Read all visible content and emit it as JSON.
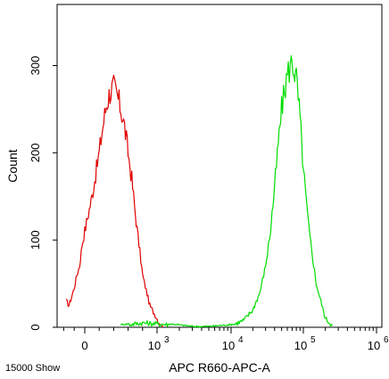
{
  "chart_data": {
    "type": "line",
    "xlabel": "APC R660-APC-A",
    "ylabel": "Count",
    "x_scale": "biexponential",
    "ylim": [
      0,
      370
    ],
    "x_ticks": [
      {
        "value": 0,
        "label": "0"
      },
      {
        "value": 1000,
        "label": "10",
        "exp": "3"
      },
      {
        "value": 10000,
        "label": "10",
        "exp": "4"
      },
      {
        "value": 100000,
        "label": "10",
        "exp": "5"
      },
      {
        "value": 1000000,
        "label": "10",
        "exp": "6"
      }
    ],
    "y_ticks": [
      {
        "value": 0,
        "label": "0"
      },
      {
        "value": 100,
        "label": "100"
      },
      {
        "value": 200,
        "label": "200"
      },
      {
        "value": 300,
        "label": "300"
      }
    ],
    "series": [
      {
        "color": "#e00000",
        "x": [
          -350,
          -300,
          -250,
          -200,
          -150,
          -100,
          -50,
          0,
          50,
          100,
          150,
          200,
          250,
          300,
          350,
          400,
          450,
          500,
          550,
          600,
          650,
          700,
          750,
          800,
          900,
          1000,
          1100,
          1200
        ],
        "y": [
          30,
          25,
          35,
          45,
          60,
          70,
          95,
          110,
          130,
          150,
          175,
          200,
          230,
          255,
          270,
          275,
          265,
          250,
          230,
          200,
          170,
          130,
          95,
          60,
          25,
          10,
          3,
          0
        ]
      },
      {
        "color": "#00dd00",
        "x": [
          500,
          800,
          1500,
          3000,
          5000,
          10000,
          15000,
          20000,
          25000,
          30000,
          35000,
          40000,
          45000,
          50000,
          60000,
          70000,
          80000,
          90000,
          100000,
          120000,
          150000,
          200000,
          250000
        ],
        "y": [
          2,
          5,
          3,
          0,
          0,
          2,
          8,
          20,
          40,
          70,
          110,
          160,
          210,
          250,
          290,
          305,
          285,
          240,
          180,
          110,
          50,
          10,
          2
        ]
      }
    ],
    "annotation": "15000 Show"
  }
}
